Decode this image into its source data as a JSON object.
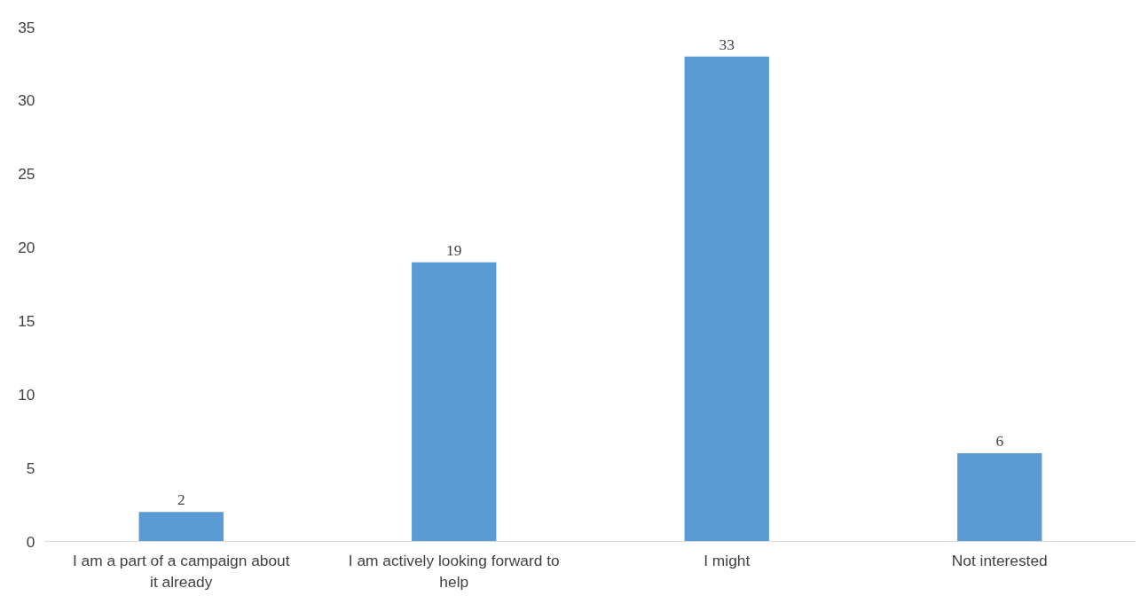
{
  "chart_data": {
    "type": "bar",
    "categories": [
      "I am a part of a campaign about it already",
      "I am actively looking forward to help",
      "I might",
      "Not interested"
    ],
    "values": [
      2,
      19,
      33,
      6
    ],
    "color": "#5b9bd5",
    "ylim": [
      0,
      35
    ],
    "yticks": [
      0,
      5,
      10,
      15,
      20,
      25,
      30,
      35
    ],
    "grid": false,
    "data_labels": true
  }
}
